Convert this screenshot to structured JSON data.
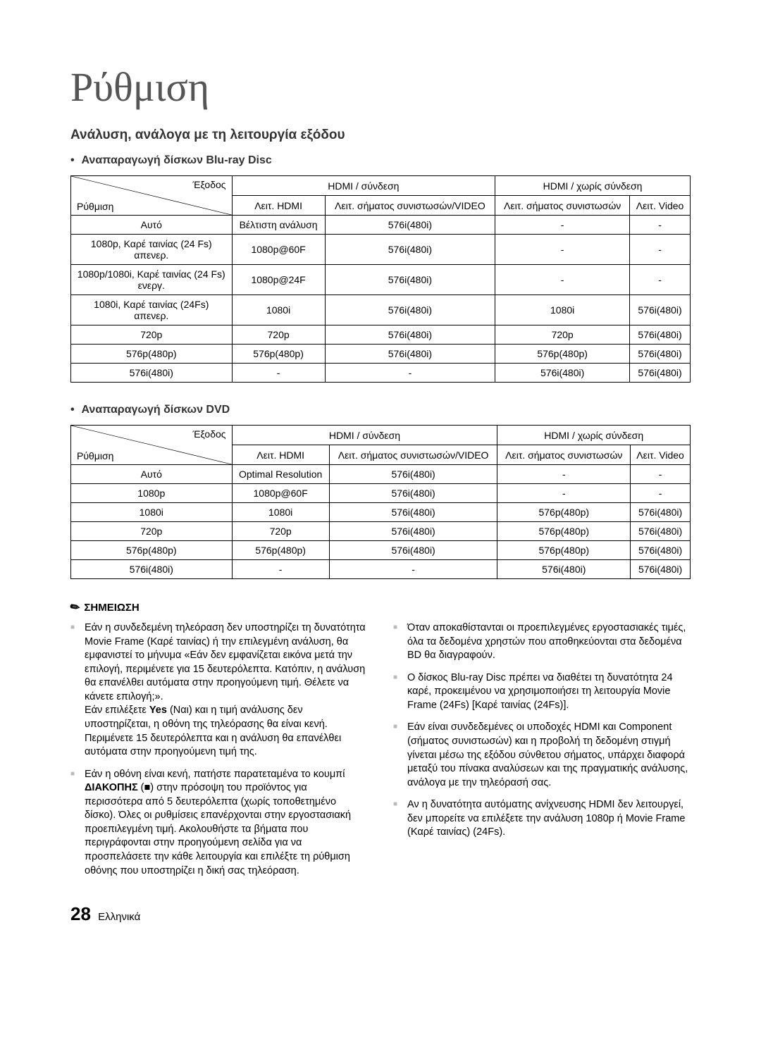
{
  "chapter_title": "Ρύθμιση",
  "section_title": "Ανάλυση, ανάλογα με τη λειτουργία εξόδου",
  "subsection1": "Αναπαραγωγή δίσκων Blu-ray Disc",
  "subsection2": "Αναπαραγωγή δίσκων DVD",
  "diag_top": "Έξοδος",
  "diag_bot": "Ρύθμιση",
  "hdr_hdmi_conn": "HDMI / σύνδεση",
  "hdr_hdmi_noconn": "HDMI / χωρίς σύνδεση",
  "sub_hdmi_mode": "Λειτ. HDMI",
  "sub_comp_video": "Λειτ. σήματος συνιστωσών/VIDEO",
  "sub_comp": "Λειτ. σήματος συνιστωσών",
  "sub_video": "Λειτ. Video",
  "t1_rows": [
    [
      "Αυτό",
      "Βέλτιστη ανάλυση",
      "576i(480i)",
      "-",
      "-"
    ],
    [
      "1080p, Καρέ ταινίας (24 Fs) απενερ.",
      "1080p@60F",
      "576i(480i)",
      "-",
      "-"
    ],
    [
      "1080p/1080i, Καρέ ταινίας (24 Fs) ενεργ.",
      "1080p@24F",
      "576i(480i)",
      "-",
      "-"
    ],
    [
      "1080i, Καρέ ταινίας (24Fs) απενερ.",
      "1080i",
      "576i(480i)",
      "1080i",
      "576i(480i)"
    ],
    [
      "720p",
      "720p",
      "576i(480i)",
      "720p",
      "576i(480i)"
    ],
    [
      "576p(480p)",
      "576p(480p)",
      "576i(480i)",
      "576p(480p)",
      "576i(480i)"
    ],
    [
      "576i(480i)",
      "-",
      "-",
      "576i(480i)",
      "576i(480i)"
    ]
  ],
  "t2_rows": [
    [
      "Αυτό",
      "Optimal Resolution",
      "576i(480i)",
      "-",
      "-"
    ],
    [
      "1080p",
      "1080p@60F",
      "576i(480i)",
      "-",
      "-"
    ],
    [
      "1080i",
      "1080i",
      "576i(480i)",
      "576p(480p)",
      "576i(480i)"
    ],
    [
      "720p",
      "720p",
      "576i(480i)",
      "576p(480p)",
      "576i(480i)"
    ],
    [
      "576p(480p)",
      "576p(480p)",
      "576i(480i)",
      "576p(480p)",
      "576i(480i)"
    ],
    [
      "576i(480i)",
      "-",
      "-",
      "576i(480i)",
      "576i(480i)"
    ]
  ],
  "note_label": "ΣΗΜΕΙΩΣΗ",
  "notes_left": [
    "Εάν η συνδεδεμένη τηλεόραση δεν υποστηρίζει τη δυνατότητα Movie Frame (Καρέ ταινίας) ή την επιλεγμένη ανάλυση, θα εμφανιστεί το μήνυμα «Εάν δεν εμφανίζεται εικόνα μετά την επιλογή, περιμένετε για 15 δευτερόλεπτα. Κατόπιν, η ανάλυση θα επανέλθει αυτόματα στην προηγούμενη τιμή. Θέλετε να κάνετε επιλογή;».\nΕάν επιλέξετε Yes (Ναι) και η τιμή ανάλυσης δεν υποστηρίζεται, η οθόνη της τηλεόρασης θα είναι κενή. Περιμένετε 15 δευτερόλεπτα και η ανάλυση θα επανέλθει αυτόματα στην προηγούμενη τιμή της.",
    "Εάν η οθόνη είναι κενή, πατήστε παρατεταμένα το κουμπί ΔΙΑΚΟΠΗΣ (■) στην πρόσοψη του προϊόντος για περισσότερα από 5 δευτερόλεπτα (χωρίς τοποθετημένο δίσκο). Όλες οι ρυθμίσεις επανέρχονται στην εργοστασιακή προεπιλεγμένη τιμή. Ακολουθήστε τα βήματα που περιγράφονται στην προηγούμενη σελίδα για να προσπελάσετε την κάθε λειτουργία και επιλέξτε τη ρύθμιση οθόνης που υποστηρίζει η δική σας τηλεόραση."
  ],
  "notes_right": [
    "Όταν αποκαθίστανται οι προεπιλεγμένες εργοστασιακές τιμές, όλα τα δεδομένα χρηστών που αποθηκεύονται στα δεδομένα BD θα διαγραφούν.",
    "Ο δίσκος Blu-ray Disc πρέπει να διαθέτει τη δυνατότητα 24 καρέ, προκειμένου να χρησιμοποιήσει τη λειτουργία Movie Frame (24Fs) [Καρέ ταινίας (24Fs)].",
    "Εάν είναι συνδεδεμένες οι υποδοχές HDMI και Component (σήματος συνιστωσών) και η προβολή τη δεδομένη στιγμή γίνεται μέσω της εξόδου σύνθετου σήματος, υπάρχει διαφορά μεταξύ του πίνακα αναλύσεων και της πραγματικής ανάλυσης, ανάλογα με την τηλεόρασή σας.",
    "Αν η δυνατότητα αυτόματης ανίχνευσης HDMI δεν λειτουργεί, δεν μπορείτε να επιλέξετε την ανάλυση 1080p ή Movie Frame (Καρέ ταινίας) (24Fs)."
  ],
  "page_number": "28",
  "lang_label": "Ελληνικά",
  "colors": {
    "text": "#000000",
    "chapter": "#555555",
    "bullet": "#bbbbbb",
    "border": "#000000",
    "bg": "#ffffff"
  }
}
